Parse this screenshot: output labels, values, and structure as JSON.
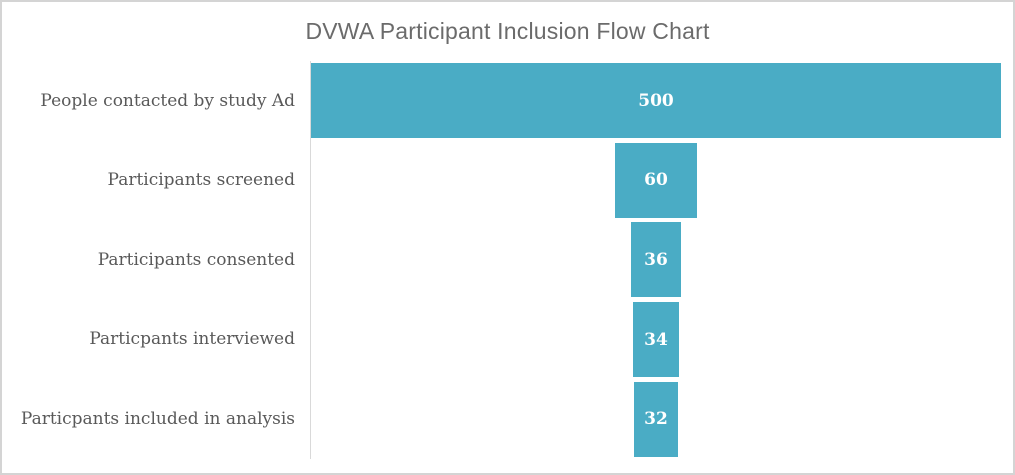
{
  "title": "DVWA Participant Inclusion Flow Chart",
  "colors": {
    "bar": "#4aacc5",
    "axis_line": "#d9d9d9",
    "frame_border": "#d4d4d4",
    "title_text": "#6b6b6b",
    "category_text": "#595959",
    "value_text": "#ffffff"
  },
  "chart_data": {
    "type": "bar",
    "subtype": "funnel",
    "orientation": "horizontal-centered",
    "title": "DVWA Participant Inclusion Flow Chart",
    "categories": [
      "People contacted by study Ad",
      "Participants screened",
      "Participants consented",
      "Particpants interviewed",
      "Particpants included in analysis"
    ],
    "values": [
      500,
      60,
      36,
      34,
      32
    ],
    "xlim": [
      0,
      500
    ],
    "grid": false,
    "legend": false,
    "value_labels": "inside-center"
  }
}
